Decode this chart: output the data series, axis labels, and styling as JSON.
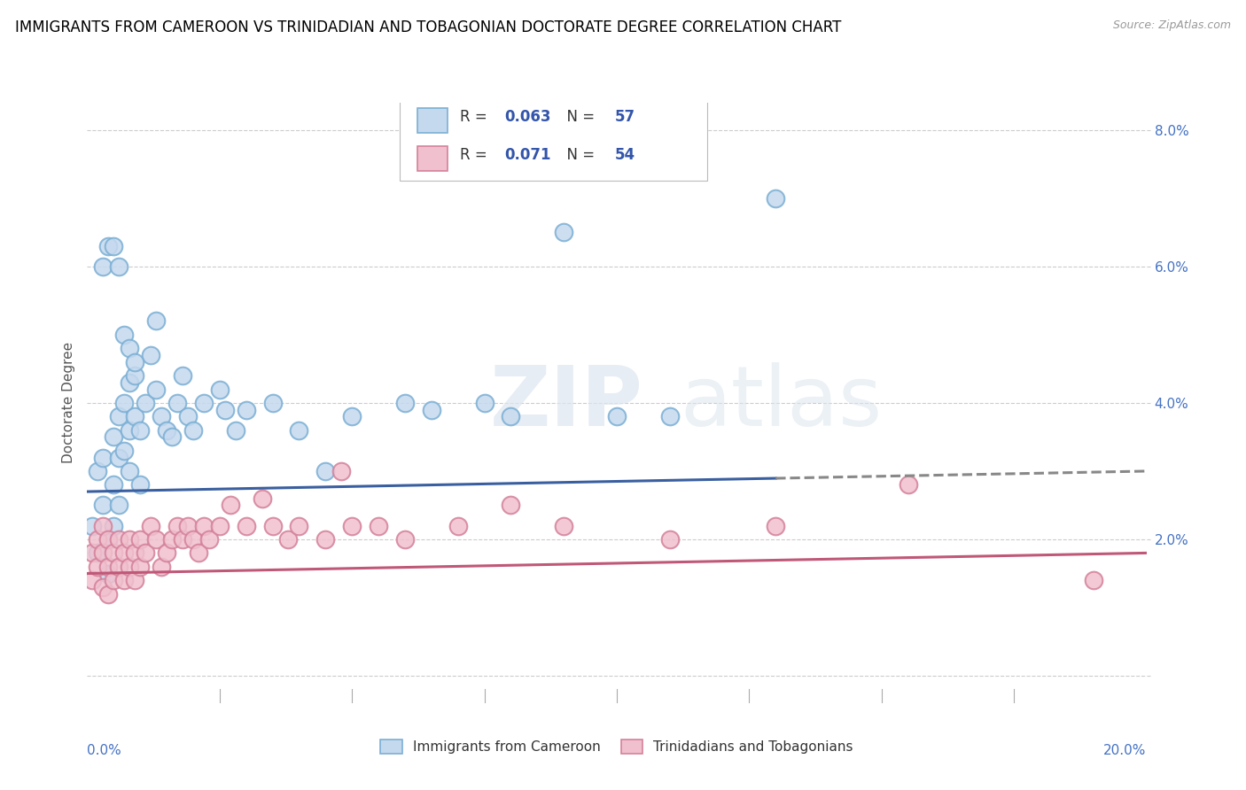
{
  "title": "IMMIGRANTS FROM CAMEROON VS TRINIDADIAN AND TOBAGONIAN DOCTORATE DEGREE CORRELATION CHART",
  "source": "Source: ZipAtlas.com",
  "ylabel": "Doctorate Degree",
  "xmin": 0.0,
  "xmax": 0.2,
  "ymin": -0.004,
  "ymax": 0.084,
  "yticks": [
    0.0,
    0.02,
    0.04,
    0.06,
    0.08
  ],
  "ytick_labels": [
    "",
    "2.0%",
    "4.0%",
    "6.0%",
    "8.0%"
  ],
  "xticks": [
    0.0,
    0.025,
    0.05,
    0.075,
    0.1,
    0.125,
    0.15,
    0.175,
    0.2
  ],
  "series_blue": {
    "label": "Immigrants from Cameroon",
    "R": 0.063,
    "N": 57,
    "color": "#7bafd4",
    "fill_color": "#c5d9ee",
    "line_color": "#3a5fa0",
    "trend_start_y": 0.027,
    "trend_end_y": 0.03,
    "trend_solid_end_x": 0.13,
    "x": [
      0.001,
      0.002,
      0.002,
      0.003,
      0.003,
      0.004,
      0.004,
      0.005,
      0.005,
      0.005,
      0.006,
      0.006,
      0.006,
      0.007,
      0.007,
      0.008,
      0.008,
      0.008,
      0.009,
      0.009,
      0.01,
      0.01,
      0.011,
      0.012,
      0.013,
      0.013,
      0.014,
      0.015,
      0.016,
      0.017,
      0.018,
      0.019,
      0.02,
      0.022,
      0.025,
      0.026,
      0.028,
      0.03,
      0.035,
      0.04,
      0.045,
      0.05,
      0.06,
      0.065,
      0.075,
      0.08,
      0.09,
      0.1,
      0.11,
      0.13,
      0.003,
      0.004,
      0.005,
      0.006,
      0.007,
      0.008,
      0.009
    ],
    "y": [
      0.022,
      0.03,
      0.018,
      0.032,
      0.025,
      0.02,
      0.015,
      0.035,
      0.028,
      0.022,
      0.038,
      0.032,
      0.025,
      0.04,
      0.033,
      0.043,
      0.036,
      0.03,
      0.044,
      0.038,
      0.036,
      0.028,
      0.04,
      0.047,
      0.052,
      0.042,
      0.038,
      0.036,
      0.035,
      0.04,
      0.044,
      0.038,
      0.036,
      0.04,
      0.042,
      0.039,
      0.036,
      0.039,
      0.04,
      0.036,
      0.03,
      0.038,
      0.04,
      0.039,
      0.04,
      0.038,
      0.065,
      0.038,
      0.038,
      0.07,
      0.06,
      0.063,
      0.063,
      0.06,
      0.05,
      0.048,
      0.046
    ]
  },
  "series_pink": {
    "label": "Trinidadians and Tobagonians",
    "R": 0.071,
    "N": 54,
    "color": "#d4819a",
    "fill_color": "#f0c0ce",
    "line_color": "#c05878",
    "trend_start_y": 0.015,
    "trend_end_y": 0.018,
    "x": [
      0.001,
      0.001,
      0.002,
      0.002,
      0.003,
      0.003,
      0.003,
      0.004,
      0.004,
      0.004,
      0.005,
      0.005,
      0.006,
      0.006,
      0.007,
      0.007,
      0.008,
      0.008,
      0.009,
      0.009,
      0.01,
      0.01,
      0.011,
      0.012,
      0.013,
      0.014,
      0.015,
      0.016,
      0.017,
      0.018,
      0.019,
      0.02,
      0.021,
      0.022,
      0.023,
      0.025,
      0.027,
      0.03,
      0.033,
      0.035,
      0.038,
      0.04,
      0.045,
      0.048,
      0.05,
      0.055,
      0.06,
      0.07,
      0.08,
      0.09,
      0.11,
      0.13,
      0.155,
      0.19
    ],
    "y": [
      0.018,
      0.014,
      0.02,
      0.016,
      0.022,
      0.018,
      0.013,
      0.02,
      0.016,
      0.012,
      0.018,
      0.014,
      0.02,
      0.016,
      0.018,
      0.014,
      0.02,
      0.016,
      0.018,
      0.014,
      0.02,
      0.016,
      0.018,
      0.022,
      0.02,
      0.016,
      0.018,
      0.02,
      0.022,
      0.02,
      0.022,
      0.02,
      0.018,
      0.022,
      0.02,
      0.022,
      0.025,
      0.022,
      0.026,
      0.022,
      0.02,
      0.022,
      0.02,
      0.03,
      0.022,
      0.022,
      0.02,
      0.022,
      0.025,
      0.022,
      0.02,
      0.022,
      0.028,
      0.014
    ]
  },
  "watermark_zip": "ZIP",
  "watermark_atlas": "atlas",
  "background_color": "#ffffff",
  "grid_color": "#cccccc",
  "title_color": "#000000",
  "title_fontsize": 12,
  "legend_color": "#3355aa"
}
